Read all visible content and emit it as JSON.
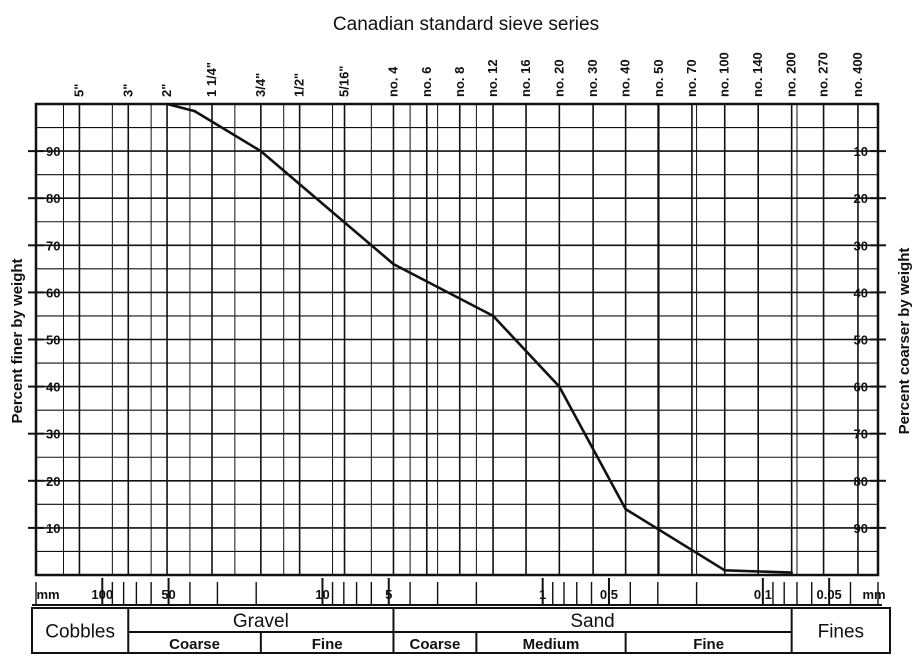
{
  "chart_data": {
    "type": "line",
    "title": "Canadian standard sieve series",
    "ylabel": "Percent finer by weight",
    "ylabel_right": "Percent coarser by weight",
    "x_scale": "log",
    "x_direction": "decreasing",
    "x_unit": "mm",
    "xlim": [
      0.03,
      200
    ],
    "ylim": [
      0,
      100
    ],
    "grid": true,
    "sieve_labels": [
      {
        "label": "5\"",
        "mm": 127
      },
      {
        "label": "3\"",
        "mm": 76.2
      },
      {
        "label": "2\"",
        "mm": 50.8
      },
      {
        "label": "1 1/4\"",
        "mm": 31.75
      },
      {
        "label": "3/4\"",
        "mm": 19.05
      },
      {
        "label": "1/2\"",
        "mm": 12.7
      },
      {
        "label": "5/16\"",
        "mm": 7.94
      },
      {
        "label": "no. 4",
        "mm": 4.76
      },
      {
        "label": "no. 6",
        "mm": 3.36
      },
      {
        "label": "no. 8",
        "mm": 2.38
      },
      {
        "label": "no. 12",
        "mm": 1.68
      },
      {
        "label": "no. 16",
        "mm": 1.19
      },
      {
        "label": "no. 20",
        "mm": 0.84
      },
      {
        "label": "no. 30",
        "mm": 0.59
      },
      {
        "label": "no. 40",
        "mm": 0.42
      },
      {
        "label": "no. 50",
        "mm": 0.297
      },
      {
        "label": "no. 70",
        "mm": 0.21
      },
      {
        "label": "no. 100",
        "mm": 0.149
      },
      {
        "label": "no. 140",
        "mm": 0.105
      },
      {
        "label": "no. 200",
        "mm": 0.074
      },
      {
        "label": "no. 270",
        "mm": 0.053
      },
      {
        "label": "no. 400",
        "mm": 0.037
      }
    ],
    "mm_axis": {
      "unit_label": "mm",
      "ticks": [
        {
          "label": "100",
          "mm": 100
        },
        {
          "label": "50",
          "mm": 50
        },
        {
          "label": "10",
          "mm": 10
        },
        {
          "label": "5",
          "mm": 5
        },
        {
          "label": "1",
          "mm": 1
        },
        {
          "label": "0.5",
          "mm": 0.5
        },
        {
          "label": "0.1",
          "mm": 0.1
        },
        {
          "label": "0.05",
          "mm": 0.05
        }
      ]
    },
    "y_ticks_left": [
      "90",
      "80",
      "70",
      "60",
      "50",
      "40",
      "30",
      "20",
      "10"
    ],
    "y_ticks_right": [
      "10",
      "20",
      "30",
      "40",
      "50",
      "60",
      "70",
      "80",
      "90"
    ],
    "series": [
      {
        "x": [
          50.8,
          38.1,
          19.05,
          4.76,
          1.68,
          0.84,
          0.42,
          0.149,
          0.074
        ],
        "y": [
          100,
          98.5,
          90,
          66,
          55,
          40,
          14,
          1,
          0.5
        ]
      }
    ],
    "classification": {
      "groups": [
        {
          "label": "Cobbles",
          "from_mm": 200,
          "to_mm": 76.2,
          "subs": []
        },
        {
          "label": "Gravel",
          "from_mm": 76.2,
          "to_mm": 4.76,
          "subs": [
            {
              "label": "Coarse",
              "from_mm": 76.2,
              "to_mm": 19.05
            },
            {
              "label": "Fine",
              "from_mm": 19.05,
              "to_mm": 4.76
            }
          ]
        },
        {
          "label": "Sand",
          "from_mm": 4.76,
          "to_mm": 0.074,
          "subs": [
            {
              "label": "Coarse",
              "from_mm": 4.76,
              "to_mm": 2.0
            },
            {
              "label": "Medium",
              "from_mm": 2.0,
              "to_mm": 0.42
            },
            {
              "label": "Fine",
              "from_mm": 0.42,
              "to_mm": 0.074
            }
          ]
        },
        {
          "label": "Fines",
          "from_mm": 0.074,
          "to_mm": 0.03,
          "subs": []
        }
      ]
    }
  }
}
